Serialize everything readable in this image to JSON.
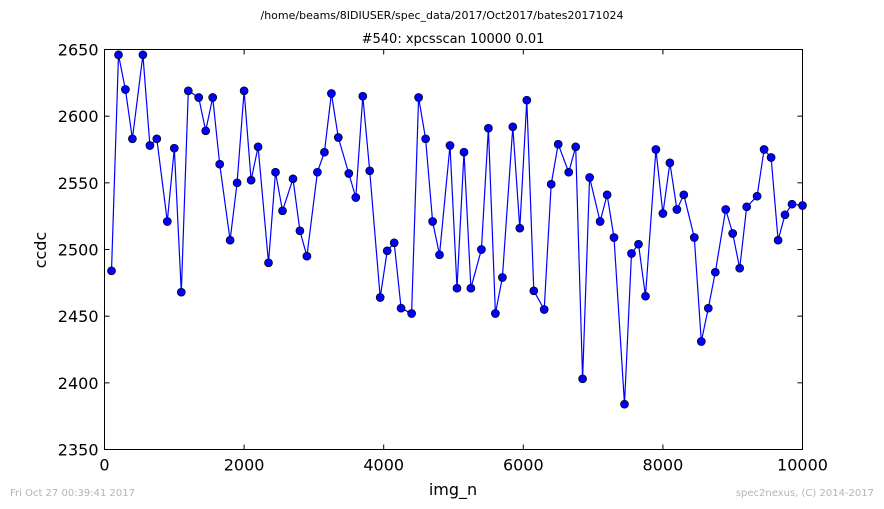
{
  "header": {
    "path": "/home/beams/8IDIUSER/spec_data/2017/Oct2017/bates20171024"
  },
  "footer": {
    "timestamp": "Fri Oct 27 00:39:41 2017",
    "credit": "spec2nexus, (C) 2014-2017"
  },
  "chart_data": {
    "type": "line",
    "title": "#540: xpcsscan 10000 0.01",
    "xlabel": "img_n",
    "ylabel": "ccdc",
    "xlim": [
      0,
      10000
    ],
    "ylim": [
      2350,
      2650
    ],
    "xticks": [
      0,
      2000,
      4000,
      6000,
      8000,
      10000
    ],
    "yticks": [
      2350,
      2400,
      2450,
      2500,
      2550,
      2600,
      2650
    ],
    "grid": false,
    "legend": "none",
    "series_color": "#0000ff",
    "line_color": "#0000ff",
    "marker": "circle",
    "series": [
      {
        "x": [
          100,
          200,
          300,
          400,
          550,
          650,
          750,
          900,
          1000,
          1100,
          1200,
          1350,
          1450,
          1550,
          1650,
          1800,
          1900,
          2000,
          2100,
          2200,
          2350,
          2450,
          2550,
          2700,
          2800,
          2900,
          3050,
          3150,
          3250,
          3350,
          3500,
          3600,
          3700,
          3800,
          3950,
          4050,
          4150,
          4250,
          4400,
          4500,
          4600,
          4700,
          4800,
          4950,
          5050,
          5150,
          5250,
          5400,
          5500,
          5600,
          5700,
          5850,
          5950,
          6050,
          6150,
          6300,
          6400,
          6500,
          6650,
          6750,
          6850,
          6950,
          7100,
          7200,
          7300,
          7450,
          7550,
          7650,
          7750,
          7900,
          8000,
          8100,
          8200,
          8300,
          8450,
          8550,
          8650,
          8750,
          8900,
          9000,
          9100,
          9200,
          9350,
          9450,
          9550,
          9650,
          9750,
          9850,
          10000
        ],
        "y": [
          2484,
          2646,
          2620,
          2583,
          2646,
          2578,
          2583,
          2521,
          2576,
          2468,
          2619,
          2614,
          2589,
          2614,
          2564,
          2507,
          2550,
          2619,
          2552,
          2577,
          2490,
          2558,
          2529,
          2553,
          2514,
          2495,
          2558,
          2573,
          2617,
          2584,
          2557,
          2539,
          2615,
          2559,
          2464,
          2499,
          2505,
          2456,
          2452,
          2614,
          2583,
          2521,
          2496,
          2578,
          2471,
          2573,
          2471,
          2500,
          2591,
          2452,
          2479,
          2592,
          2516,
          2612,
          2469,
          2455,
          2549,
          2579,
          2558,
          2577,
          2403,
          2554,
          2521,
          2541,
          2509,
          2384,
          2497,
          2504,
          2465,
          2575,
          2527,
          2565,
          2530,
          2541,
          2509,
          2431,
          2456,
          2483,
          2530,
          2512,
          2486,
          2532,
          2540,
          2575,
          2569,
          2507,
          2526,
          2534,
          2533
        ]
      }
    ]
  }
}
